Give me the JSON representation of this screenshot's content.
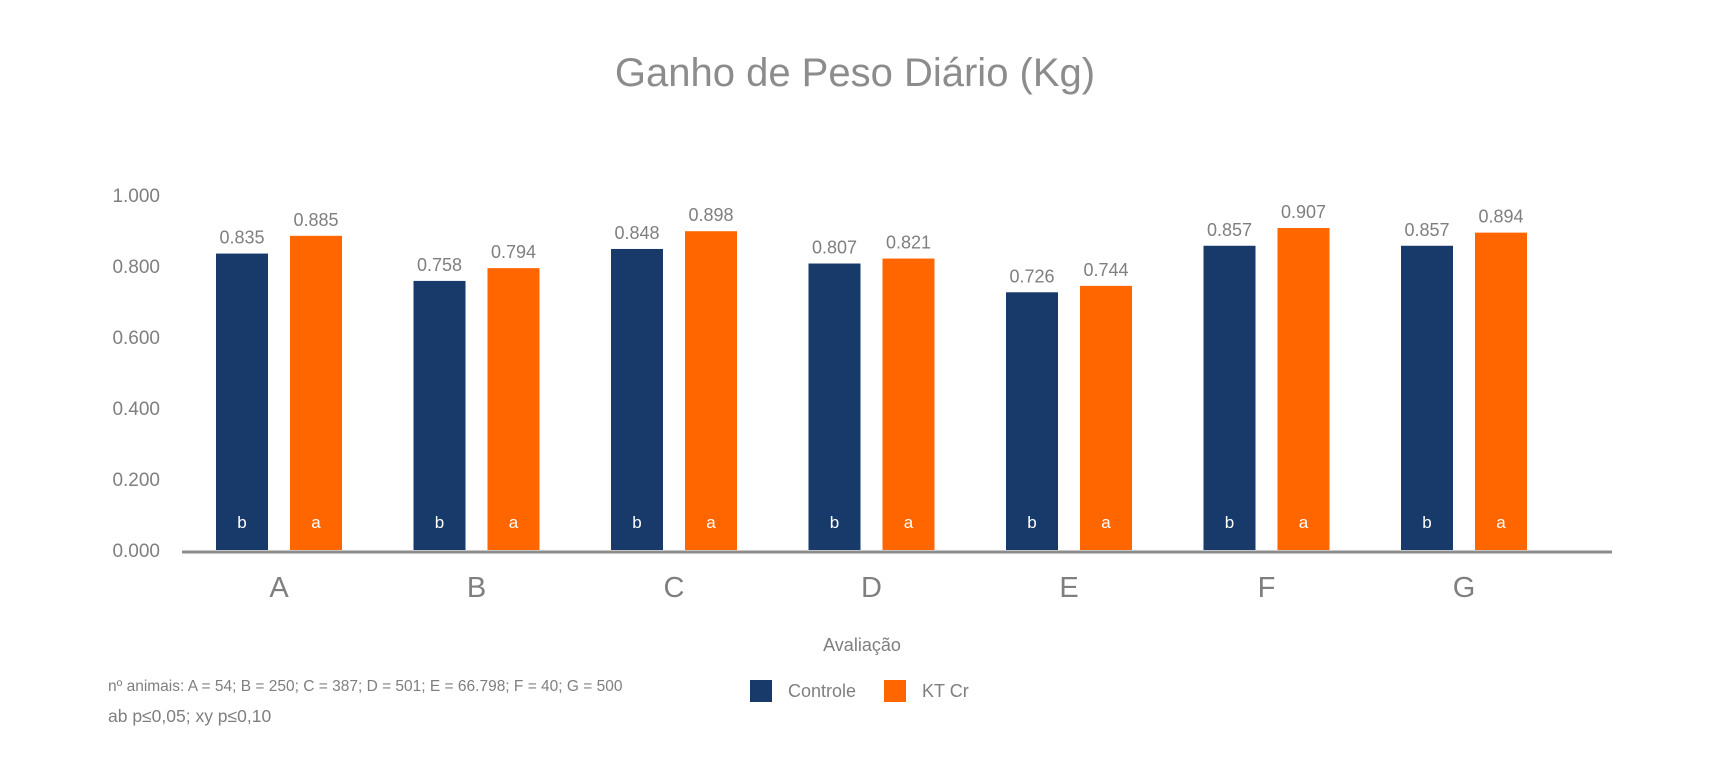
{
  "chart_data": {
    "type": "bar",
    "title": "Ganho de Peso Diário (Kg)",
    "xlabel": "Avaliação",
    "ylabel": "",
    "categories": [
      "A",
      "B",
      "C",
      "D",
      "E",
      "F",
      "G"
    ],
    "series": [
      {
        "name": "Controle",
        "color": "#173a6b",
        "values": [
          0.835,
          0.758,
          0.848,
          0.807,
          0.726,
          0.857,
          0.857
        ],
        "value_labels": [
          "0.835",
          "0.758",
          "0.848",
          "0.807",
          "0.726",
          "0.857",
          "0.857"
        ],
        "significance": [
          "b",
          "b",
          "b",
          "b",
          "b",
          "b",
          "b"
        ]
      },
      {
        "name": "KT Cr",
        "color": "#ff6600",
        "values": [
          0.885,
          0.794,
          0.898,
          0.821,
          0.744,
          0.907,
          0.894
        ],
        "value_labels": [
          "0.885",
          "0.794",
          "0.898",
          "0.821",
          "0.744",
          "0.907",
          "0.894"
        ],
        "significance": [
          "a",
          "a",
          "a",
          "a",
          "a",
          "a",
          "a"
        ]
      }
    ],
    "yticks": [
      "0.000",
      "0.200",
      "0.400",
      "0.600",
      "0.800",
      "1.000"
    ],
    "ytick_values": [
      0,
      0.2,
      0.4,
      0.6,
      0.8,
      1.0
    ],
    "ylim": [
      0,
      1.0
    ],
    "grid": false,
    "legend_position": "bottom"
  },
  "footnotes": {
    "animals": "nº animais: A = 54; B = 250; C = 387; D = 501; E = 66.798; F = 40; G = 500",
    "significance": "ab p≤0,05; xy p≤0,10"
  },
  "colors": {
    "axis": "#8c8c8c",
    "text": "#7f7f7f"
  }
}
